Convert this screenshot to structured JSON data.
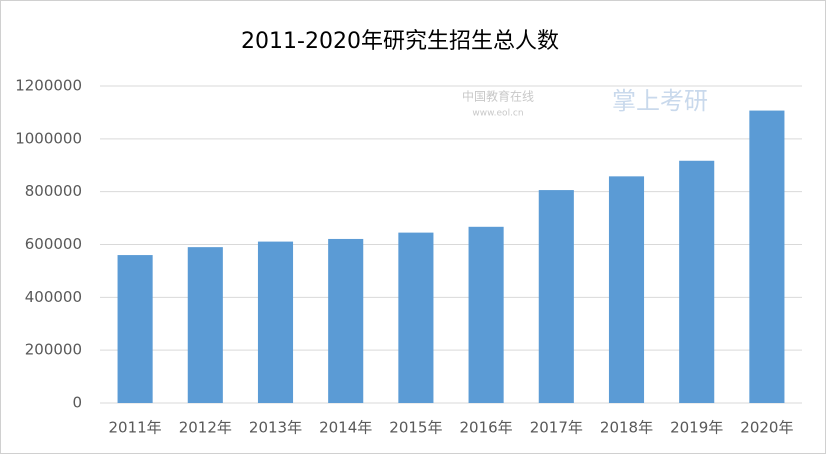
{
  "chart_data": {
    "type": "bar",
    "title": "2011-2020年研究生招生总人数",
    "categories": [
      "2011年",
      "2012年",
      "2013年",
      "2014年",
      "2015年",
      "2016年",
      "2017年",
      "2018年",
      "2019年",
      "2020年"
    ],
    "values": [
      560000,
      590000,
      611000,
      621000,
      645000,
      667000,
      806000,
      858000,
      917000,
      1107000
    ],
    "color": "#5b9bd5",
    "ylim": [
      0,
      1200000
    ],
    "yticks": [
      0,
      200000,
      400000,
      600000,
      800000,
      1000000,
      1200000
    ],
    "grid": true,
    "watermarks": [
      "中国教育在线",
      "www.eol.cn",
      "掌上考研"
    ]
  }
}
